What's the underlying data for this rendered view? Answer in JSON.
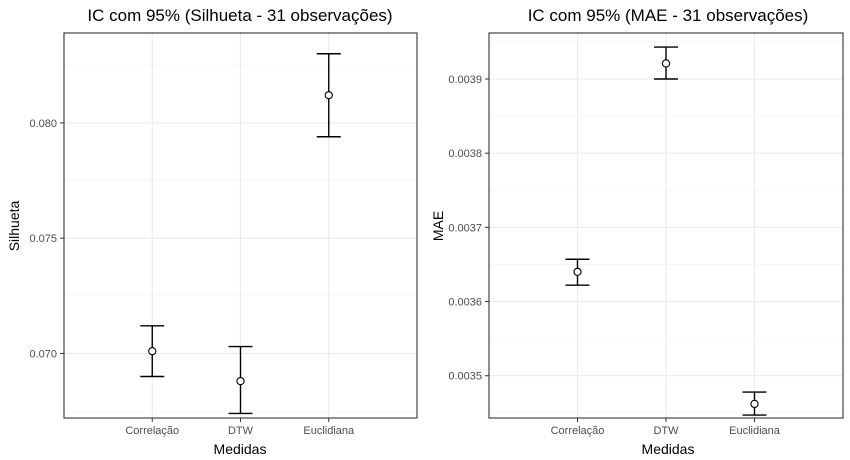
{
  "chart_data": [
    {
      "type": "errorbar",
      "title": "IC com 95% (Silhueta - 31 observações)",
      "xlabel": "Medidas",
      "ylabel": "Silhueta",
      "categories": [
        "Correlação",
        "DTW",
        "Euclidiana"
      ],
      "values": [
        0.0701,
        0.0688,
        0.0812
      ],
      "lower": [
        0.069,
        0.0674,
        0.0794
      ],
      "upper": [
        0.0712,
        0.0703,
        0.083
      ],
      "ylim": [
        0.0672,
        0.0839
      ],
      "yticks": [
        0.07,
        0.075,
        0.08
      ],
      "ytick_labels": [
        "0.070",
        "0.075",
        "0.080"
      ],
      "grid": true
    },
    {
      "type": "errorbar",
      "title": "IC com 95% (MAE - 31 observações)",
      "xlabel": "Medidas",
      "ylabel": "MAE",
      "categories": [
        "Correlação",
        "DTW",
        "Euclidiana"
      ],
      "values": [
        0.00364,
        0.003921,
        0.003462
      ],
      "lower": [
        0.003622,
        0.0039,
        0.003447
      ],
      "upper": [
        0.003657,
        0.003943,
        0.003478
      ],
      "ylim": [
        0.003443,
        0.003962
      ],
      "yticks": [
        0.0035,
        0.0036,
        0.0037,
        0.0038,
        0.0039
      ],
      "ytick_labels": [
        "0.0035",
        "0.0036",
        "0.0037",
        "0.0038",
        "0.0039"
      ],
      "grid": true
    }
  ]
}
